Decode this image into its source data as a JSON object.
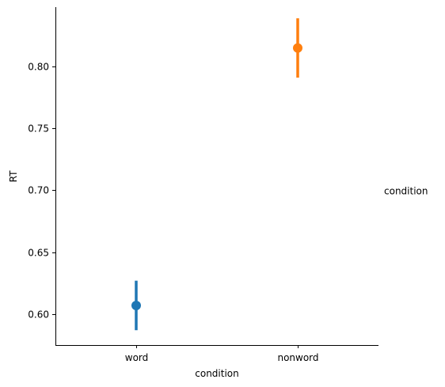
{
  "chart_data": {
    "type": "scatter",
    "style": "pointplot-with-error-bars",
    "xlabel": "condition",
    "ylabel": "RT",
    "categories": [
      "word",
      "nonword"
    ],
    "ylim": [
      0.575,
      0.848
    ],
    "yticks": [
      0.6,
      0.65,
      0.7,
      0.75,
      0.8
    ],
    "ytick_labels": [
      "0.60",
      "0.65",
      "0.70",
      "0.75",
      "0.80"
    ],
    "series": [
      {
        "category": "word",
        "value": 0.607,
        "ci_low": 0.587,
        "ci_high": 0.627,
        "color": "#1f77b4"
      },
      {
        "category": "nonword",
        "value": 0.815,
        "ci_low": 0.791,
        "ci_high": 0.839,
        "color": "#ff7f0e"
      }
    ],
    "legend": {
      "title": "condition",
      "placement": "right"
    },
    "grid": false
  }
}
